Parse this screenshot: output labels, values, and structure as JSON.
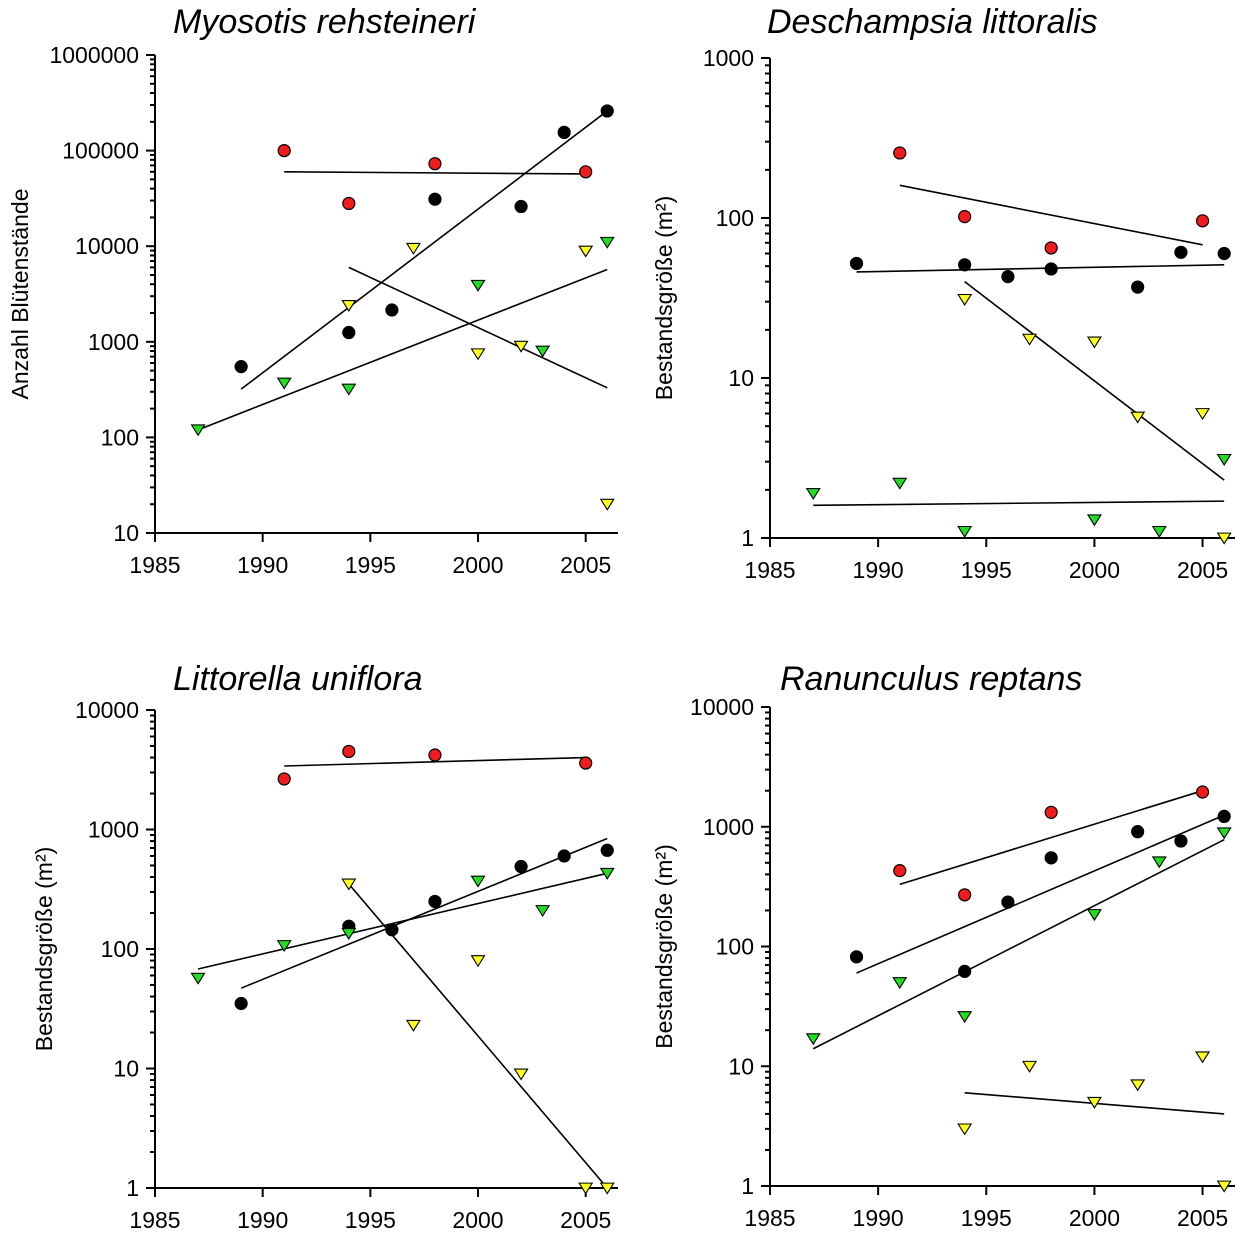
{
  "chart_data": [
    {
      "type": "scatter",
      "title": "Myosotis rehsteineri",
      "ylabel": "Anzahl Blütenstände",
      "xlim": [
        1985,
        2006.5
      ],
      "ylim": [
        10,
        1000000
      ],
      "log_y": true,
      "x_ticks": [
        1985,
        1990,
        1995,
        2000,
        2005
      ],
      "y_ticks": [
        10,
        100,
        1000,
        10000,
        100000,
        1000000
      ],
      "y_tick_labels": [
        "10",
        "100",
        "1000",
        "10000",
        "100000",
        "1000000"
      ],
      "series": [
        {
          "color": "#ee1c1c",
          "marker": "circle",
          "x": [
            1991,
            1994,
            1998,
            2005
          ],
          "y": [
            100000,
            28000,
            73000,
            60000
          ],
          "trend": [
            [
              1991,
              60000
            ],
            [
              2005,
              57000
            ]
          ]
        },
        {
          "color": "#000000",
          "marker": "circle",
          "x": [
            1989,
            1994,
            1996,
            1998,
            2002,
            2004,
            2006
          ],
          "y": [
            550,
            1250,
            2150,
            31000,
            26000,
            155000,
            260000
          ],
          "trend": [
            [
              1989,
              320
            ],
            [
              2006,
              260000
            ]
          ]
        },
        {
          "color": "#ffff22",
          "marker": "triangle",
          "x": [
            1994,
            1997,
            2000,
            2002,
            2005,
            2006
          ],
          "y": [
            2400,
            9500,
            750,
            900,
            8900,
            20
          ],
          "trend": [
            [
              1994,
              6000
            ],
            [
              2006,
              330
            ]
          ]
        },
        {
          "color": "#22dd22",
          "marker": "triangle",
          "x": [
            1987,
            1991,
            1994,
            2000,
            2003,
            2006
          ],
          "y": [
            120,
            370,
            320,
            3900,
            800,
            11000
          ],
          "trend": [
            [
              1987,
              120
            ],
            [
              2006,
              5700
            ]
          ]
        }
      ]
    },
    {
      "type": "scatter",
      "title": "Deschampsia littoralis",
      "ylabel": "Bestandsgröße (m²)",
      "xlim": [
        1985,
        2006.5
      ],
      "ylim": [
        1,
        1000
      ],
      "log_y": true,
      "x_ticks": [
        1985,
        1990,
        1995,
        2000,
        2005
      ],
      "y_ticks": [
        1,
        10,
        100,
        1000
      ],
      "y_tick_labels": [
        "1",
        "10",
        "100",
        "1000"
      ],
      "series": [
        {
          "color": "#ee1c1c",
          "marker": "circle",
          "x": [
            1991,
            1994,
            1998,
            2005
          ],
          "y": [
            255,
            102,
            65,
            96
          ],
          "trend": [
            [
              1991,
              160
            ],
            [
              2005,
              68
            ]
          ]
        },
        {
          "color": "#000000",
          "marker": "circle",
          "x": [
            1989,
            1994,
            1996,
            1998,
            2002,
            2004,
            2006
          ],
          "y": [
            52,
            51,
            43,
            48,
            37,
            61,
            60
          ],
          "trend": [
            [
              1989,
              46
            ],
            [
              2006,
              51
            ]
          ]
        },
        {
          "color": "#ffff22",
          "marker": "triangle",
          "x": [
            1994,
            1997,
            2000,
            2002,
            2005,
            2006
          ],
          "y": [
            31,
            17.5,
            16.8,
            5.7,
            6,
            1
          ],
          "trend": [
            [
              1994,
              40
            ],
            [
              2006,
              2.3
            ]
          ]
        },
        {
          "color": "#22dd22",
          "marker": "triangle",
          "x": [
            1987,
            1991,
            1994,
            2000,
            2003,
            2006
          ],
          "y": [
            1.9,
            2.2,
            1.1,
            1.3,
            1.1,
            3.1
          ],
          "trend": [
            [
              1987,
              1.6
            ],
            [
              2006,
              1.7
            ]
          ]
        }
      ]
    },
    {
      "type": "scatter",
      "title": "Littorella uniflora",
      "ylabel": "Bestandsgröße (m²)",
      "xlim": [
        1985,
        2006.5
      ],
      "ylim": [
        1,
        10000
      ],
      "log_y": true,
      "x_ticks": [
        1985,
        1990,
        1995,
        2000,
        2005
      ],
      "y_ticks": [
        1,
        10,
        100,
        1000,
        10000
      ],
      "y_tick_labels": [
        "1",
        "10",
        "100",
        "1000",
        "10000"
      ],
      "series": [
        {
          "color": "#ee1c1c",
          "marker": "circle",
          "x": [
            1991,
            1994,
            1998,
            2005
          ],
          "y": [
            2650,
            4500,
            4200,
            3600
          ],
          "trend": [
            [
              1991,
              3400
            ],
            [
              2005,
              4000
            ]
          ]
        },
        {
          "color": "#000000",
          "marker": "circle",
          "x": [
            1989,
            1994,
            1996,
            1998,
            2002,
            2004,
            2006
          ],
          "y": [
            35,
            155,
            145,
            250,
            490,
            600,
            670
          ],
          "trend": [
            [
              1989,
              47
            ],
            [
              2006,
              840
            ]
          ]
        },
        {
          "color": "#ffff22",
          "marker": "triangle",
          "x": [
            1994,
            1997,
            2000,
            2002,
            2005,
            2006
          ],
          "y": [
            350,
            23,
            80,
            9,
            1,
            1
          ],
          "trend": [
            [
              1994,
              350
            ],
            [
              2006,
              1
            ]
          ]
        },
        {
          "color": "#22dd22",
          "marker": "triangle",
          "x": [
            1987,
            1991,
            1994,
            2000,
            2003,
            2006
          ],
          "y": [
            57,
            107,
            135,
            370,
            210,
            430
          ],
          "trend": [
            [
              1987,
              68
            ],
            [
              2006,
              430
            ]
          ]
        }
      ]
    },
    {
      "type": "scatter",
      "title": "Ranunculus reptans",
      "ylabel": "Bestandsgröße (m²)",
      "xlim": [
        1985,
        2006.5
      ],
      "ylim": [
        1,
        10000
      ],
      "log_y": true,
      "x_ticks": [
        1985,
        1990,
        1995,
        2000,
        2005
      ],
      "y_ticks": [
        1,
        10,
        100,
        1000,
        10000
      ],
      "y_tick_labels": [
        "1",
        "10",
        "100",
        "1000",
        "10000"
      ],
      "series": [
        {
          "color": "#ee1c1c",
          "marker": "circle",
          "x": [
            1991,
            1994,
            1998,
            2005
          ],
          "y": [
            430,
            270,
            1320,
            1950
          ],
          "trend": [
            [
              1991,
              330
            ],
            [
              2005,
              2000
            ]
          ]
        },
        {
          "color": "#000000",
          "marker": "circle",
          "x": [
            1989,
            1994,
            1996,
            1998,
            2002,
            2004,
            2006
          ],
          "y": [
            82,
            62,
            235,
            550,
            910,
            760,
            1220
          ],
          "trend": [
            [
              1989,
              60
            ],
            [
              2006,
              1250
            ]
          ]
        },
        {
          "color": "#ffff22",
          "marker": "triangle",
          "x": [
            1994,
            1997,
            2000,
            2002,
            2005,
            2006
          ],
          "y": [
            3,
            10,
            5,
            7,
            12,
            1
          ],
          "trend": [
            [
              1994,
              6
            ],
            [
              2006,
              4
            ]
          ]
        },
        {
          "color": "#22dd22",
          "marker": "triangle",
          "x": [
            1987,
            1991,
            1994,
            2000,
            2003,
            2006
          ],
          "y": [
            17,
            50,
            26,
            185,
            510,
            890
          ],
          "trend": [
            [
              1987,
              14
            ],
            [
              2006,
              780
            ]
          ]
        }
      ]
    }
  ]
}
